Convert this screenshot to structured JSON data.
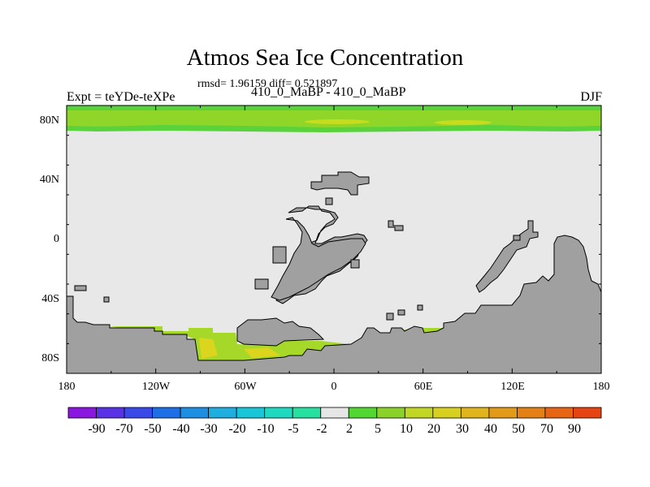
{
  "title": "Atmos Sea Ice Concentration",
  "stats": "rmsd= 1.96159 diff= 0.521897",
  "left_label": "Expt = teYDe-teXPe",
  "center_label": "410_0_MaBP - 410_0_MaBP",
  "right_label": "DJF",
  "map": {
    "projection": "cylindrical-equidistant",
    "lon_range": [
      -180,
      180
    ],
    "lat_range": [
      -90,
      90
    ],
    "lat_ticks": [
      "80N",
      "40N",
      "0",
      "40S",
      "80S"
    ],
    "lon_ticks": [
      "180",
      "120W",
      "60W",
      "0",
      "60E",
      "120E",
      "180"
    ],
    "colors": {
      "ocean_no_change": "#e8e8e8",
      "land": "#a0a0a0",
      "arctic_band_outer": "#5ad23c",
      "arctic_band_inner": "#8fd628",
      "arctic_band_peak": "#c8dc1e",
      "antarctic_ice_low": "#a6d82a",
      "antarctic_ice_high": "#dcd51e"
    }
  },
  "colorbar": {
    "labels": [
      "-90",
      "-70",
      "-50",
      "-40",
      "-30",
      "-20",
      "-10",
      "-5",
      "-2",
      "2",
      "5",
      "10",
      "20",
      "30",
      "40",
      "50",
      "70",
      "90"
    ],
    "colors": [
      "#8a16e0",
      "#5a32e6",
      "#3a4ae8",
      "#1e6ee6",
      "#1e8ee2",
      "#1eaee0",
      "#18c6d8",
      "#1ed8c0",
      "#26e0a0",
      "#e6e6e6",
      "#52d632",
      "#8ad22a",
      "#c2d624",
      "#d8d020",
      "#e0b41c",
      "#e29a18",
      "#e48016",
      "#e66414",
      "#e64412"
    ]
  }
}
